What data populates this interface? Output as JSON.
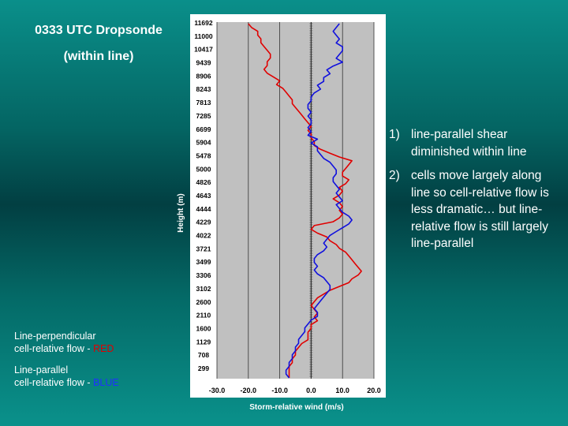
{
  "slide": {
    "title_line1": "0333 UTC Dropsonde",
    "title_line2": "(within line)",
    "notes": [
      {
        "num": "1)",
        "text": "line-parallel shear diminished within line"
      },
      {
        "num": "2)",
        "text": "cells move largely along line so cell-relative flow is less dramatic… but line-relative flow is still largely line-parallel"
      }
    ],
    "legend": {
      "perp_line1": "Line-perpendicular",
      "perp_line2_prefix": "cell-relative flow - ",
      "perp_color_word": "RED",
      "par_line1": "Line-parallel",
      "par_line2_prefix": "cell-relative flow - ",
      "par_color_word": "BLUE"
    }
  },
  "colors": {
    "red_series": "#e00000",
    "blue_series": "#1010dd",
    "plot_background": "#c0c0c0"
  },
  "chart_data": {
    "type": "line",
    "title": "",
    "xlabel": "Storm-relative wind (m/s)",
    "ylabel": "Height (m)",
    "xlim": [
      -30,
      20
    ],
    "x_ticks": [
      "-30.0",
      "-20.0",
      "-10.0",
      "0.0",
      "10.0",
      "20.0"
    ],
    "y_ticks": [
      "11692",
      "11000",
      "10417",
      "9439",
      "8906",
      "8243",
      "7813",
      "7285",
      "6699",
      "5904",
      "5478",
      "5000",
      "4826",
      "4643",
      "4444",
      "4229",
      "4022",
      "3721",
      "3499",
      "3306",
      "3102",
      "2600",
      "2110",
      "1600",
      "1129",
      "708",
      "299"
    ],
    "grid": "vertical",
    "orientation": "vertical-profile",
    "series": [
      {
        "color": "red",
        "values": [
          -20,
          -19,
          -17,
          -17,
          -16,
          -16,
          -15,
          -14,
          -13,
          -13,
          -14,
          -14,
          -15,
          -14,
          -12,
          -10,
          -11,
          -9,
          -8,
          -7,
          -6,
          -6,
          -5,
          -4,
          -3,
          -2,
          -1,
          0,
          -1,
          0,
          0,
          1,
          1,
          3,
          6,
          9,
          13,
          12,
          11,
          10,
          10,
          12,
          11,
          9,
          10,
          9,
          7,
          9,
          10,
          9,
          10,
          9,
          7,
          1,
          0,
          2,
          5,
          6,
          8,
          9,
          11,
          12,
          13,
          14,
          15,
          16,
          15,
          13,
          12,
          9,
          6,
          4,
          2,
          1,
          0,
          1,
          2,
          1,
          2,
          0,
          0,
          -1,
          -1,
          -1,
          -3,
          -4,
          -5,
          -5,
          -6,
          -6,
          -7,
          -7,
          -7,
          -7
        ],
        "x_increment_note": ""
      },
      {
        "color": "blue",
        "values": [
          9,
          8,
          7,
          8,
          9,
          8,
          10,
          10,
          9,
          8,
          10,
          7,
          5,
          6,
          4,
          4,
          2,
          3,
          1,
          0,
          0,
          -1,
          -1,
          0,
          -1,
          0,
          0,
          -1,
          0,
          -1,
          2,
          0,
          2,
          2,
          3,
          4,
          6,
          7,
          8,
          8,
          7,
          7,
          8,
          9,
          8,
          9,
          10,
          8,
          9,
          10,
          12,
          13,
          12,
          10,
          8,
          6,
          5,
          4,
          5,
          4,
          2,
          1,
          1,
          2,
          1,
          2,
          4,
          5,
          6,
          6,
          5,
          4,
          3,
          2,
          1,
          2,
          2,
          0,
          -1,
          -2,
          -2,
          -3,
          -4,
          -4,
          -5,
          -5,
          -6,
          -6,
          -7,
          -7,
          -8,
          -8,
          -7
        ],
        "x_increment_note": ""
      }
    ]
  }
}
